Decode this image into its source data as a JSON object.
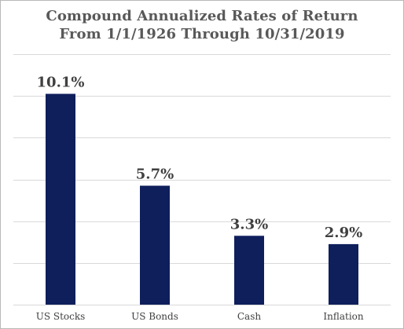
{
  "chart_data": {
    "type": "bar",
    "title": "Compound Annualized Rates of Return",
    "subtitle": "From 1/1/1926 Through 10/31/2019",
    "categories": [
      "US Stocks",
      "US Bonds",
      "Cash",
      "Inflation"
    ],
    "values": [
      10.1,
      5.7,
      3.3,
      2.9
    ],
    "value_labels": [
      "10.1%",
      "5.7%",
      "3.3%",
      "2.9%"
    ],
    "ylim": [
      0,
      12
    ],
    "grid": true,
    "legend": "none",
    "xlabel": "",
    "ylabel": "",
    "bar_color": "#0F1F5C"
  }
}
